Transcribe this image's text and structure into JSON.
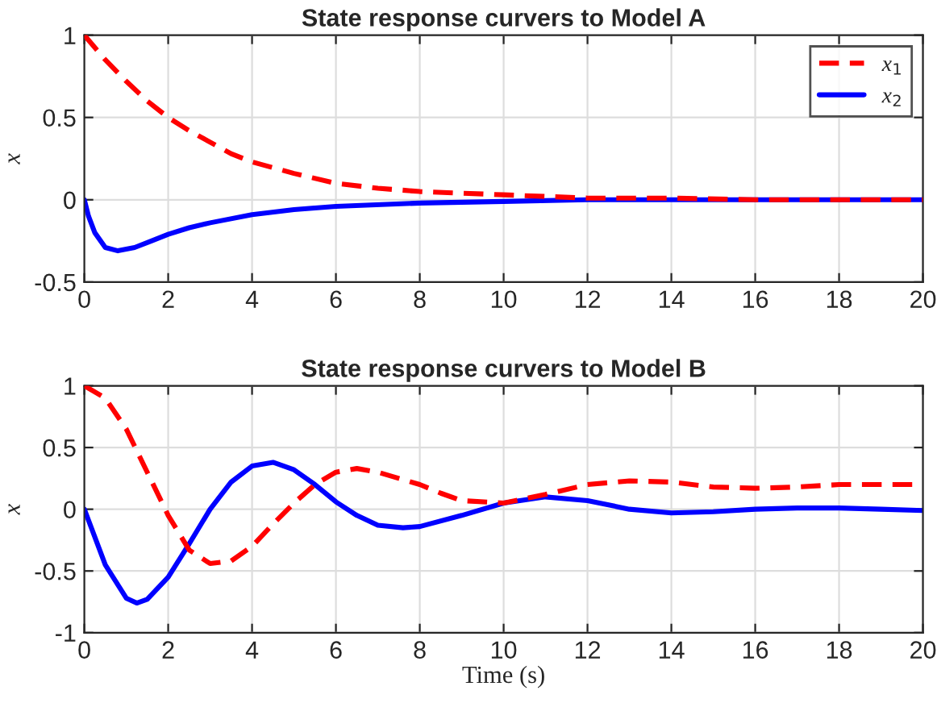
{
  "chart_data": [
    {
      "type": "line",
      "title": "State response curvers to Model A",
      "ylabel": "x",
      "xlim": [
        0,
        20
      ],
      "ylim": [
        -0.5,
        1
      ],
      "xticks": [
        0,
        2,
        4,
        6,
        8,
        10,
        12,
        14,
        16,
        18,
        20
      ],
      "yticks": [
        -0.5,
        0,
        0.5,
        1
      ],
      "grid": true,
      "legend": "top right",
      "series": [
        {
          "name": "x$_{1}$",
          "color": "#ff0000",
          "line_style": "dashed",
          "x": [
            0,
            0.5,
            1,
            1.5,
            2,
            2.5,
            3,
            3.5,
            4,
            5,
            6,
            7,
            8,
            9,
            10,
            12,
            14,
            16,
            18,
            20
          ],
          "values": [
            1,
            0.85,
            0.72,
            0.6,
            0.5,
            0.42,
            0.35,
            0.28,
            0.23,
            0.16,
            0.1,
            0.07,
            0.05,
            0.04,
            0.03,
            0.01,
            0.01,
            0,
            0,
            0
          ]
        },
        {
          "name": "x$_{2}$",
          "color": "#0000ff",
          "line_style": "solid",
          "x": [
            0,
            0.1,
            0.25,
            0.5,
            0.8,
            1.2,
            1.6,
            2,
            2.5,
            3,
            4,
            5,
            6,
            8,
            10,
            12,
            14,
            16,
            18,
            20
          ],
          "values": [
            0,
            -0.1,
            -0.2,
            -0.29,
            -0.31,
            -0.29,
            -0.25,
            -0.21,
            -0.17,
            -0.14,
            -0.09,
            -0.06,
            -0.04,
            -0.02,
            -0.01,
            0,
            0,
            0,
            0,
            0
          ]
        }
      ]
    },
    {
      "type": "line",
      "title": "State response curvers to Model B",
      "xlabel": "Time (s)",
      "ylabel": "x",
      "xlim": [
        0,
        20
      ],
      "ylim": [
        -1,
        1
      ],
      "xticks": [
        0,
        2,
        4,
        6,
        8,
        10,
        12,
        14,
        16,
        18,
        20
      ],
      "yticks": [
        -1,
        -0.5,
        0,
        0.5,
        1
      ],
      "grid": true,
      "series": [
        {
          "color": "#ff0000",
          "line_style": "dashed",
          "x": [
            0,
            0.5,
            1,
            1.5,
            2,
            2.5,
            3,
            3.5,
            4,
            4.5,
            5,
            5.5,
            6,
            6.5,
            7,
            7.5,
            8,
            8.5,
            9,
            10,
            11,
            12,
            13,
            14,
            15,
            16,
            17,
            18,
            19,
            20
          ],
          "values": [
            1,
            0.9,
            0.65,
            0.3,
            -0.05,
            -0.33,
            -0.44,
            -0.42,
            -0.3,
            -0.12,
            0.05,
            0.2,
            0.3,
            0.33,
            0.3,
            0.25,
            0.2,
            0.13,
            0.07,
            0.05,
            0.12,
            0.2,
            0.23,
            0.22,
            0.18,
            0.17,
            0.18,
            0.2,
            0.2,
            0.2
          ]
        },
        {
          "color": "#0000ff",
          "line_style": "solid",
          "x": [
            0,
            0.5,
            1,
            1.25,
            1.5,
            2,
            2.5,
            3,
            3.5,
            4,
            4.5,
            5,
            5.5,
            6,
            6.5,
            7,
            7.6,
            8,
            9,
            10,
            11,
            12,
            13,
            14,
            15,
            16,
            17,
            18,
            19,
            20
          ],
          "values": [
            0,
            -0.45,
            -0.72,
            -0.76,
            -0.73,
            -0.55,
            -0.28,
            0,
            0.22,
            0.35,
            0.38,
            0.32,
            0.2,
            0.06,
            -0.05,
            -0.13,
            -0.15,
            -0.14,
            -0.05,
            0.05,
            0.1,
            0.07,
            0,
            -0.03,
            -0.02,
            0,
            0.01,
            0.01,
            0,
            -0.01
          ]
        }
      ]
    }
  ]
}
